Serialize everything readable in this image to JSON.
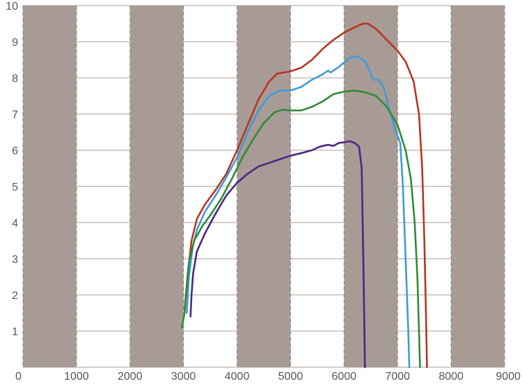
{
  "chart_data": {
    "type": "line",
    "xlim": [
      0,
      9000
    ],
    "ylim": [
      0,
      10
    ],
    "x_ticks": [
      "0",
      "1000",
      "2000",
      "3000",
      "4000",
      "5000",
      "6000",
      "7000",
      "8000",
      "9000"
    ],
    "y_ticks": [
      "1",
      "2",
      "3",
      "4",
      "5",
      "6",
      "7",
      "8",
      "9",
      "10"
    ],
    "grid": true,
    "shaded_bands": [
      [
        0,
        1000
      ],
      [
        2000,
        3000
      ],
      [
        4000,
        5000
      ],
      [
        6000,
        7000
      ],
      [
        8000,
        9000
      ]
    ],
    "colors": {
      "band": "#a89b95",
      "background": "#ffffff",
      "series": [
        "#b5361f",
        "#3f9ad8",
        "#2f8a36",
        "#4b2585"
      ]
    },
    "series": [
      {
        "points": [
          [
            3020,
            1.6
          ],
          [
            3080,
            2.6
          ],
          [
            3150,
            3.5
          ],
          [
            3250,
            4.1
          ],
          [
            3400,
            4.5
          ],
          [
            3600,
            4.9
          ],
          [
            3800,
            5.35
          ],
          [
            4000,
            6.0
          ],
          [
            4200,
            6.7
          ],
          [
            4400,
            7.4
          ],
          [
            4600,
            7.9
          ],
          [
            4750,
            8.12
          ],
          [
            5000,
            8.18
          ],
          [
            5200,
            8.28
          ],
          [
            5400,
            8.5
          ],
          [
            5600,
            8.8
          ],
          [
            5800,
            9.05
          ],
          [
            6000,
            9.25
          ],
          [
            6200,
            9.4
          ],
          [
            6350,
            9.5
          ],
          [
            6450,
            9.5
          ],
          [
            6600,
            9.35
          ],
          [
            6800,
            9.05
          ],
          [
            7000,
            8.75
          ],
          [
            7150,
            8.45
          ],
          [
            7300,
            7.9
          ],
          [
            7400,
            7.0
          ],
          [
            7460,
            5.5
          ],
          [
            7500,
            3.5
          ],
          [
            7530,
            1.5
          ],
          [
            7550,
            0
          ]
        ]
      },
      {
        "points": [
          [
            3060,
            1.5
          ],
          [
            3100,
            2.5
          ],
          [
            3170,
            3.3
          ],
          [
            3250,
            3.8
          ],
          [
            3400,
            4.3
          ],
          [
            3600,
            4.75
          ],
          [
            3800,
            5.25
          ],
          [
            4000,
            5.8
          ],
          [
            4200,
            6.5
          ],
          [
            4400,
            7.1
          ],
          [
            4600,
            7.5
          ],
          [
            4800,
            7.65
          ],
          [
            5000,
            7.65
          ],
          [
            5200,
            7.75
          ],
          [
            5400,
            7.95
          ],
          [
            5600,
            8.1
          ],
          [
            5700,
            8.2
          ],
          [
            5750,
            8.15
          ],
          [
            5900,
            8.3
          ],
          [
            6100,
            8.55
          ],
          [
            6250,
            8.6
          ],
          [
            6400,
            8.45
          ],
          [
            6550,
            7.95
          ],
          [
            6650,
            7.95
          ],
          [
            6750,
            7.7
          ],
          [
            6850,
            7.1
          ],
          [
            6950,
            6.6
          ],
          [
            7050,
            6.2
          ],
          [
            7100,
            5.0
          ],
          [
            7150,
            3.0
          ],
          [
            7200,
            1.0
          ],
          [
            7220,
            0
          ]
        ]
      },
      {
        "points": [
          [
            2970,
            1.1
          ],
          [
            3020,
            1.5
          ],
          [
            3060,
            2.2
          ],
          [
            3100,
            2.9
          ],
          [
            3200,
            3.5
          ],
          [
            3350,
            3.9
          ],
          [
            3500,
            4.2
          ],
          [
            3700,
            4.65
          ],
          [
            3900,
            5.2
          ],
          [
            4100,
            5.8
          ],
          [
            4300,
            6.3
          ],
          [
            4500,
            6.75
          ],
          [
            4700,
            7.05
          ],
          [
            4850,
            7.12
          ],
          [
            5000,
            7.1
          ],
          [
            5200,
            7.1
          ],
          [
            5400,
            7.2
          ],
          [
            5600,
            7.35
          ],
          [
            5800,
            7.55
          ],
          [
            6000,
            7.62
          ],
          [
            6200,
            7.65
          ],
          [
            6400,
            7.6
          ],
          [
            6600,
            7.5
          ],
          [
            6800,
            7.2
          ],
          [
            7000,
            6.7
          ],
          [
            7150,
            6.0
          ],
          [
            7250,
            5.2
          ],
          [
            7320,
            4.0
          ],
          [
            7370,
            2.5
          ],
          [
            7400,
            1.0
          ],
          [
            7420,
            0
          ]
        ]
      },
      {
        "points": [
          [
            3130,
            1.4
          ],
          [
            3150,
            2.0
          ],
          [
            3180,
            2.6
          ],
          [
            3250,
            3.2
          ],
          [
            3400,
            3.7
          ],
          [
            3600,
            4.25
          ],
          [
            3800,
            4.75
          ],
          [
            4000,
            5.1
          ],
          [
            4200,
            5.35
          ],
          [
            4400,
            5.55
          ],
          [
            4600,
            5.65
          ],
          [
            4800,
            5.75
          ],
          [
            5000,
            5.85
          ],
          [
            5200,
            5.92
          ],
          [
            5400,
            6.0
          ],
          [
            5550,
            6.1
          ],
          [
            5700,
            6.15
          ],
          [
            5800,
            6.12
          ],
          [
            5900,
            6.2
          ],
          [
            6000,
            6.22
          ],
          [
            6100,
            6.25
          ],
          [
            6200,
            6.2
          ],
          [
            6280,
            6.1
          ],
          [
            6330,
            5.5
          ],
          [
            6360,
            3.0
          ],
          [
            6380,
            1.0
          ],
          [
            6390,
            0
          ]
        ]
      }
    ]
  }
}
